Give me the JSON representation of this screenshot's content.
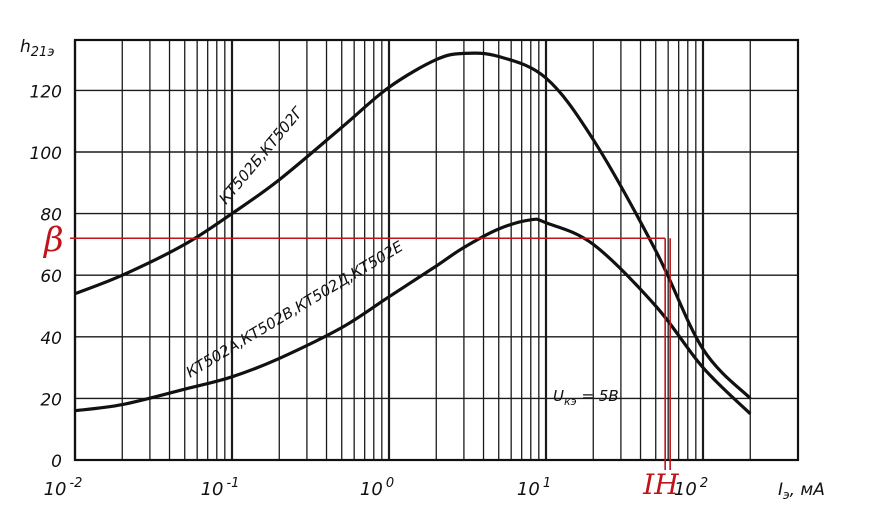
{
  "chart_data": {
    "type": "line",
    "x_scale": "log",
    "xlim": [
      0.01,
      200
    ],
    "ylim": [
      0,
      140
    ],
    "grid": true,
    "ylabel": "h21э",
    "xlabel": "Iэ, мА",
    "y_ticks": [
      0,
      20,
      40,
      60,
      80,
      100,
      120
    ],
    "x_ticks": [
      {
        "value": 0.01,
        "base": "10",
        "exp": "-2"
      },
      {
        "value": 0.1,
        "base": "10",
        "exp": "-1"
      },
      {
        "value": 1,
        "base": "10",
        "exp": "0"
      },
      {
        "value": 10,
        "base": "10",
        "exp": "1"
      },
      {
        "value": 100,
        "base": "10",
        "exp": "2"
      }
    ],
    "series": [
      {
        "name": "КТ502Б, КТ502Г",
        "x": [
          0.01,
          0.02,
          0.05,
          0.1,
          0.2,
          0.5,
          1,
          2,
          3,
          5,
          10,
          20,
          50,
          100,
          200
        ],
        "y": [
          54,
          60,
          70,
          80,
          91,
          108,
          121,
          130,
          132,
          131,
          124,
          104,
          68,
          36,
          20
        ]
      },
      {
        "name": "КТ502А, КТ502В, КТ502Д, КТ502Е",
        "x": [
          0.01,
          0.02,
          0.05,
          0.1,
          0.2,
          0.5,
          1,
          2,
          3,
          5,
          8,
          10,
          20,
          50,
          100,
          200
        ],
        "y": [
          16,
          18,
          23,
          27,
          33,
          43,
          53,
          63,
          69,
          75,
          78,
          77,
          70,
          50,
          30,
          15
        ]
      }
    ],
    "annotations": [
      {
        "text": "Uкэ = 5В"
      },
      {
        "text": "β",
        "y": 72
      },
      {
        "text": "IН",
        "x": 60
      }
    ]
  }
}
